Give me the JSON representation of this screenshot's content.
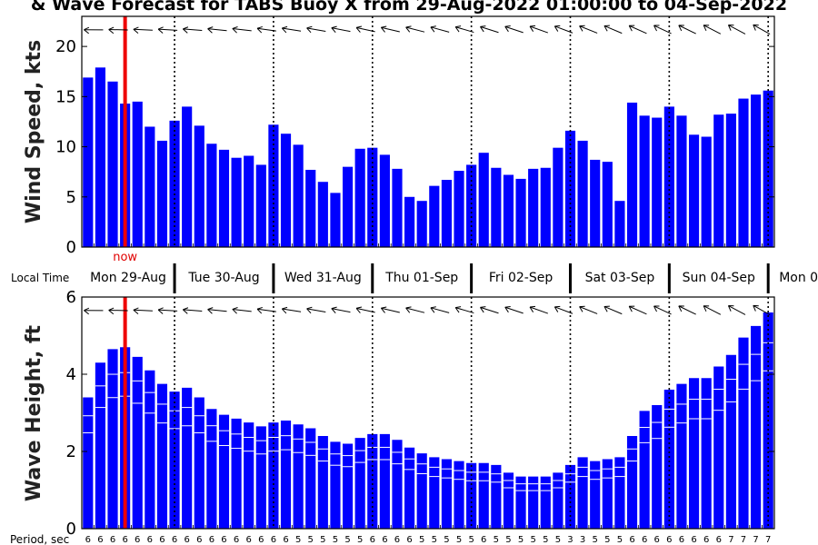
{
  "title": "& Wave Forecast for TABS Buoy X from 29-Aug-2022 01:00:00 to 04-Sep-2022",
  "local_time_label": "Local Time",
  "period_label": "Period, sec",
  "now_label": "now",
  "days": [
    "Mon 29-Aug",
    "Tue 30-Aug",
    "Wed 31-Aug",
    "Thu 01-Sep",
    "Fri 02-Sep",
    "Sat 03-Sep",
    "Sun 04-Sep",
    "Mon 0"
  ],
  "colors": {
    "bar": "#0000ff",
    "now": "#ee0000",
    "axis": "#000000"
  },
  "chart_data": [
    {
      "type": "bar",
      "ylabel": "Wind Speed, kts",
      "ylim": [
        0,
        23
      ],
      "yticks": [
        0,
        5,
        10,
        15,
        20
      ],
      "values": [
        16.9,
        17.9,
        16.5,
        14.3,
        14.5,
        12.0,
        10.6,
        12.6,
        14.0,
        12.1,
        10.3,
        9.7,
        8.9,
        9.1,
        8.2,
        12.2,
        11.3,
        10.2,
        7.7,
        6.5,
        5.4,
        8.0,
        9.8,
        9.9,
        9.2,
        7.8,
        5.0,
        4.6,
        6.1,
        6.7,
        7.6,
        8.2,
        9.4,
        7.9,
        7.2,
        6.8,
        7.8,
        7.9,
        9.9,
        11.6,
        10.6,
        8.7,
        8.5,
        4.6,
        14.4,
        13.1,
        12.9,
        14.0,
        13.1,
        11.2,
        11.0,
        13.2,
        13.3,
        14.8,
        15.2,
        15.6
      ],
      "direction_arrows": "wind direction arrows above each day"
    },
    {
      "type": "bar",
      "ylabel": "Wave Height, ft",
      "ylim": [
        0,
        6
      ],
      "yticks": [
        0,
        2,
        4,
        6
      ],
      "values": [
        3.4,
        4.3,
        4.65,
        4.7,
        4.45,
        4.1,
        3.75,
        3.55,
        3.65,
        3.4,
        3.1,
        2.95,
        2.85,
        2.75,
        2.65,
        2.75,
        2.8,
        2.7,
        2.6,
        2.4,
        2.25,
        2.2,
        2.35,
        2.45,
        2.45,
        2.3,
        2.1,
        1.95,
        1.85,
        1.8,
        1.75,
        1.7,
        1.7,
        1.65,
        1.45,
        1.35,
        1.35,
        1.35,
        1.45,
        1.65,
        1.85,
        1.75,
        1.8,
        1.85,
        2.4,
        3.05,
        3.2,
        3.6,
        3.75,
        3.9,
        3.9,
        4.2,
        4.5,
        4.95,
        5.25,
        5.6
      ],
      "periods": [
        "6",
        "6",
        "6",
        "6",
        "6",
        "6",
        "6",
        "6",
        "6",
        "6",
        "6",
        "6",
        "6",
        "6",
        "6",
        "6",
        "6",
        "5",
        "5",
        "5",
        "5",
        "5",
        "5",
        "6",
        "6",
        "6",
        "6",
        "5",
        "5",
        "5",
        "5",
        "5",
        "6",
        "5",
        "5",
        "5",
        "5",
        "5",
        "5",
        "3",
        "3",
        "5",
        "5",
        "5",
        "6",
        "6",
        "6",
        "6",
        "6",
        "6",
        "6",
        "6",
        "7",
        "7",
        "7",
        "7"
      ]
    }
  ]
}
